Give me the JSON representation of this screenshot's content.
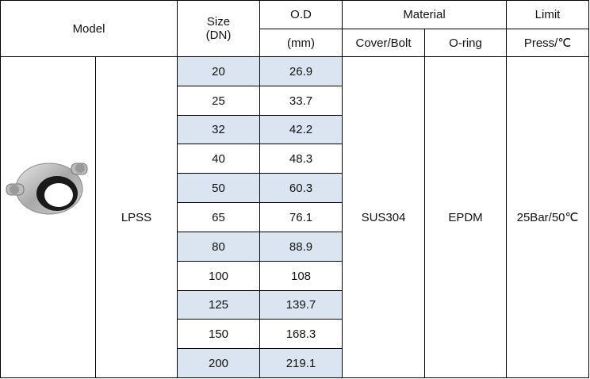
{
  "header": {
    "model": "Model",
    "size": [
      "Size",
      "(DN)"
    ],
    "od": "O.D",
    "od_unit": "(mm)",
    "material": "Material",
    "cover_bolt": "Cover/Bolt",
    "o_ring": "O-ring",
    "limit": "Limit",
    "limit_unit": "Press/℃"
  },
  "body": {
    "model": "LPSS",
    "cover_bolt": "SUS304",
    "o_ring": "EPDM",
    "limit": "25Bar/50℃"
  },
  "rows": [
    [
      "20",
      "26.9"
    ],
    [
      "25",
      "33.7"
    ],
    [
      "32",
      "42.2"
    ],
    [
      "40",
      "48.3"
    ],
    [
      "50",
      "60.3"
    ],
    [
      "65",
      "76.1"
    ],
    [
      "80",
      "88.9"
    ],
    [
      "100",
      "108"
    ],
    [
      "125",
      "139.7"
    ],
    [
      "150",
      "168.3"
    ],
    [
      "200",
      "219.1"
    ]
  ]
}
